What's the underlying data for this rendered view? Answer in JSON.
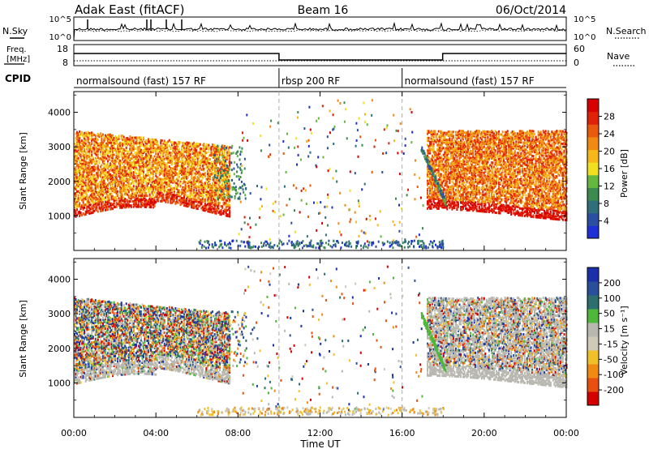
{
  "header": {
    "station": "Adak East (fitACF)",
    "beam": "Beam 16",
    "date": "06/Oct/2014"
  },
  "noise_panel": {
    "left_label": "N.Sky",
    "right_label": "N.Search",
    "left_ticks": [
      "10^5",
      "10^0"
    ],
    "right_ticks": [
      "10^5",
      "10^0"
    ]
  },
  "freq_panel": {
    "left_label_1": "Freq.",
    "left_label_2": "[MHz]",
    "right_label": "Nave",
    "left_ticks": [
      "18",
      "8"
    ],
    "right_ticks": [
      "60",
      "0"
    ]
  },
  "cpid": {
    "label": "CPID",
    "segments": [
      {
        "name": "normalsound (fast) 157 RF",
        "start": 0,
        "end": 10
      },
      {
        "name": "rbsp 200 RF",
        "start": 10,
        "end": 16
      },
      {
        "name": "normalsound (fast) 157 RF",
        "start": 16,
        "end": 24
      }
    ]
  },
  "colors": {
    "power_scale": [
      "#1f2fd6",
      "#2b4fa0",
      "#2f6f7a",
      "#3c8a4e",
      "#64b840",
      "#f0e020",
      "#f5b818",
      "#f08a10",
      "#ea5a0c",
      "#e02208",
      "#d80000"
    ],
    "velocity_scale": [
      "#1a2fa8",
      "#2a4f9a",
      "#2d6e6e",
      "#4fb83c",
      "#b8b8b0",
      "#cfc9b8",
      "#f0c028",
      "#f08a10",
      "#e85010",
      "#d40000"
    ],
    "ground_scatter": "#b8b8b0"
  },
  "chart_data": {
    "type": "heatmap",
    "x_axis": {
      "label": "Time UT",
      "range_hours": [
        0,
        24
      ],
      "ticks": [
        "00:00",
        "04:00",
        "08:00",
        "12:00",
        "16:00",
        "20:00",
        "00:00"
      ]
    },
    "y_axis": {
      "label": "Slant Range [km]",
      "range": [
        0,
        4600
      ],
      "ticks": [
        "1000",
        "2000",
        "3000",
        "4000"
      ]
    },
    "power_colorbar": {
      "label": "Power [dB]",
      "ticks": [
        "4",
        "8",
        "12",
        "16",
        "20",
        "24",
        "28"
      ],
      "range": [
        0,
        30
      ]
    },
    "velocity_colorbar": {
      "label": "Velocity [m s⁻¹]",
      "ticks": [
        "200",
        "100",
        "50",
        "15",
        "-15",
        "-50",
        "-100",
        "-200"
      ]
    },
    "mode_change_hours": [
      10,
      16
    ]
  }
}
